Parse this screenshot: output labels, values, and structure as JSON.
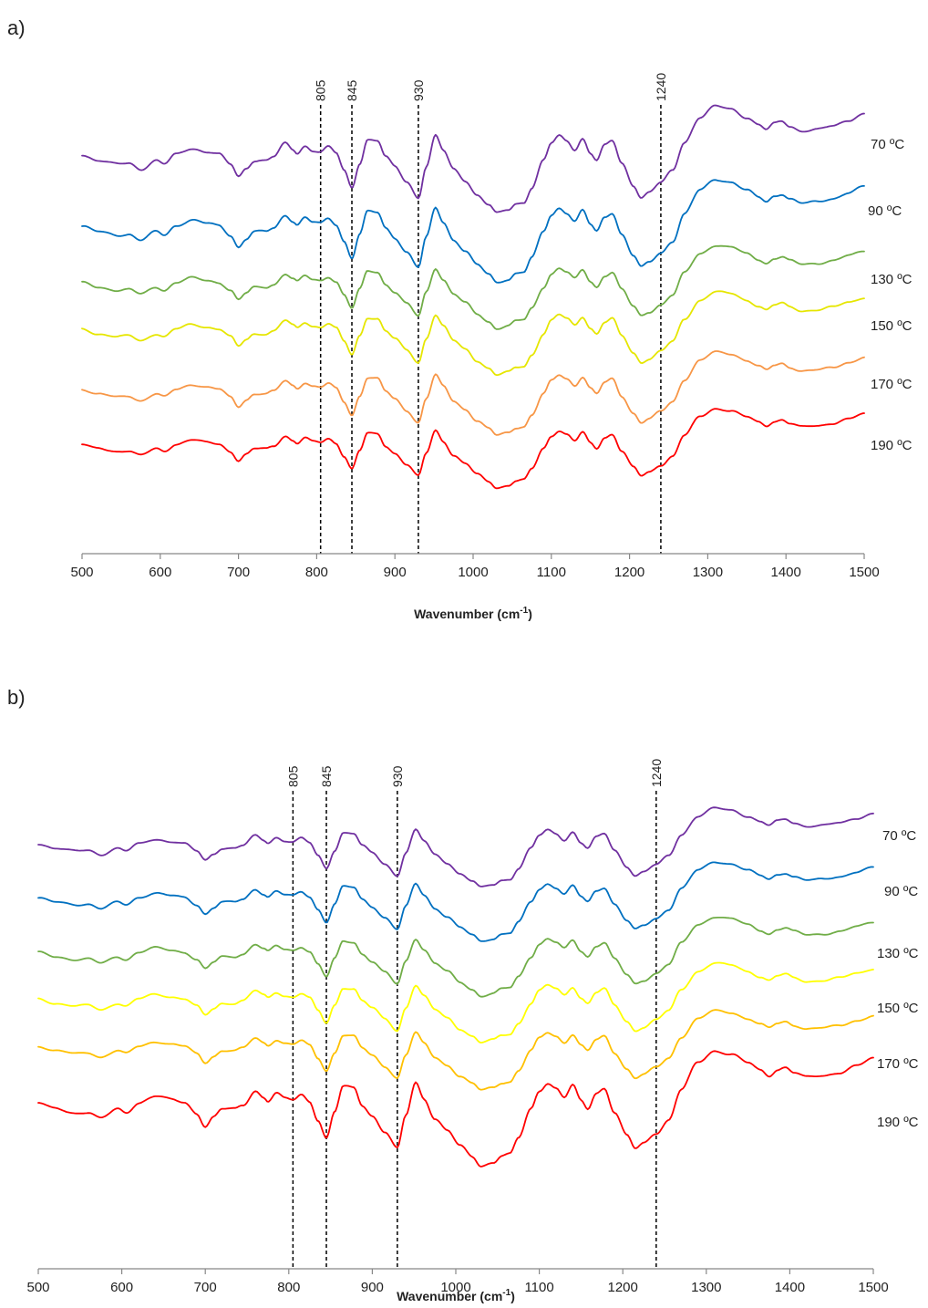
{
  "chart_data": [
    {
      "panel_label": "a)",
      "type": "line",
      "xlabel": "Wavenumber (cm",
      "xlabel_superscript": "-1",
      "xlabel_suffix": ")",
      "xlim": [
        500,
        1500
      ],
      "xticks": [
        500,
        600,
        700,
        800,
        900,
        1000,
        1100,
        1200,
        1300,
        1400,
        1500
      ],
      "y_axis_visible": false,
      "reference_lines": [
        {
          "x": 805,
          "label": "805"
        },
        {
          "x": 845,
          "label": "845"
        },
        {
          "x": 930,
          "label": "930"
        },
        {
          "x": 1240,
          "label": "1240"
        }
      ],
      "series": [
        {
          "name": "70 ºC",
          "color": "#7030a0"
        },
        {
          "name": "90 ºC",
          "color": "#0070c0"
        },
        {
          "name": "130 ºC",
          "color": "#70ad47"
        },
        {
          "name": "150 ºC",
          "color": "#e6e600"
        },
        {
          "name": "170 ºC",
          "color": "#f79646"
        },
        {
          "name": "190 ºC",
          "color": "#ff0000"
        }
      ]
    },
    {
      "panel_label": "b)",
      "type": "line",
      "xlabel": "Wavenumber (cm",
      "xlabel_superscript": "-1",
      "xlabel_suffix": ")",
      "xlim": [
        500,
        1500
      ],
      "xticks": [
        500,
        600,
        700,
        800,
        900,
        1000,
        1100,
        1200,
        1300,
        1400,
        1500
      ],
      "y_axis_visible": false,
      "reference_lines": [
        {
          "x": 805,
          "label": "805"
        },
        {
          "x": 845,
          "label": "845"
        },
        {
          "x": 930,
          "label": "930"
        },
        {
          "x": 1240,
          "label": "1240"
        }
      ],
      "series": [
        {
          "name": "70 ºC",
          "color": "#7030a0"
        },
        {
          "name": "90 ºC",
          "color": "#0070c0"
        },
        {
          "name": "130 ºC",
          "color": "#70ad47"
        },
        {
          "name": "150 ºC",
          "color": "#ffff00"
        },
        {
          "name": "170 ºC",
          "color": "#ffc000"
        },
        {
          "name": "190 ºC",
          "color": "#ff0000"
        }
      ]
    }
  ]
}
